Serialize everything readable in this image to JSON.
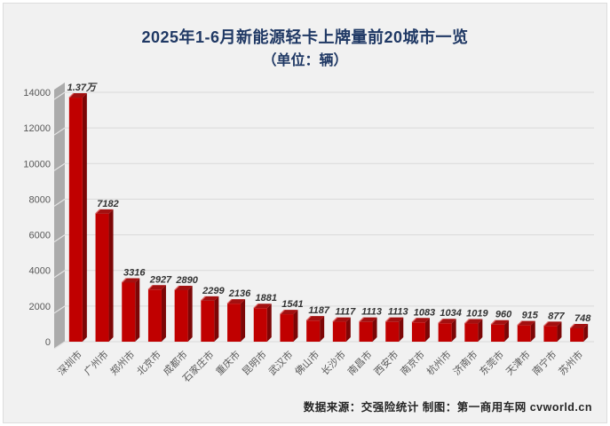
{
  "title": "2025年1-6月新能源轻卡上牌量前20城市一览",
  "subtitle": "（单位：辆）",
  "footer": "数据来源：交强险统计 制图：第一商用车网 cvworld.cn",
  "colors": {
    "background": "#f1f1f1",
    "title_text": "#1f3864",
    "footer_text": "#262626",
    "bar_front": "#c00000",
    "bar_top": "#a31010",
    "bar_side": "#7c0606",
    "bar_highlight": "#e06868",
    "gridline": "#d9d9d9",
    "wall": "#ababab",
    "wall_hatch": "#e3e3e3",
    "axis_text": "#595959",
    "value_text": "#333333"
  },
  "chart_data": {
    "type": "bar",
    "title": "2025年1-6月新能源轻卡上牌量前20城市一览",
    "subtitle": "（单位：辆）",
    "categories": [
      "深圳市",
      "广州市",
      "郑州市",
      "北京市",
      "成都市",
      "石家庄市",
      "重庆市",
      "昆明市",
      "武汉市",
      "佛山市",
      "长沙市",
      "南昌市",
      "西安市",
      "南京市",
      "杭州市",
      "济南市",
      "东莞市",
      "天津市",
      "南宁市",
      "苏州市"
    ],
    "values": [
      13700,
      7182,
      3316,
      2927,
      2890,
      2299,
      2136,
      1881,
      1541,
      1187,
      1117,
      1113,
      1113,
      1083,
      1034,
      1019,
      960,
      915,
      877,
      748
    ],
    "value_labels": [
      "1.37万",
      "7182",
      "3316",
      "2927",
      "2890",
      "2299",
      "2136",
      "1881",
      "1541",
      "1187",
      "1117",
      "1113",
      "1113",
      "1083",
      "1034",
      "1019",
      "960",
      "915",
      "877",
      "748"
    ],
    "xlabel": "",
    "ylabel": "",
    "ylim": [
      0,
      14000
    ],
    "yticks": [
      0,
      2000,
      4000,
      6000,
      8000,
      10000,
      12000,
      14000
    ],
    "grid": "horizontal",
    "legend": "none",
    "style": "3d-column"
  }
}
